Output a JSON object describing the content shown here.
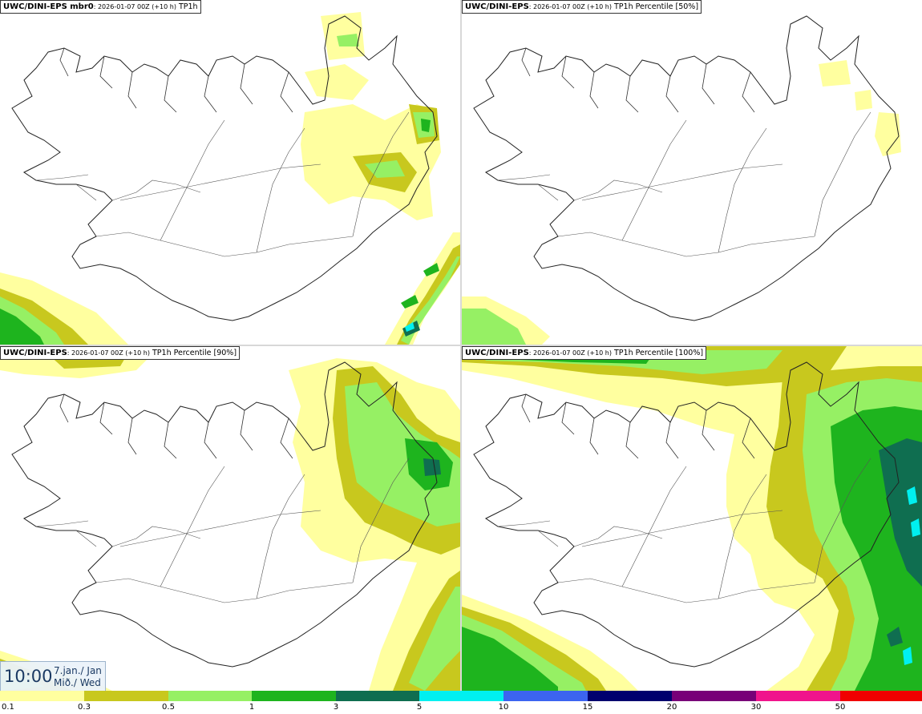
{
  "panels": [
    {
      "model": "UWC/DINI-EPS mbr0",
      "run": ": 2026-01-07 00Z (+10 h)",
      "param": " TP1h"
    },
    {
      "model": "UWC/DINI-EPS",
      "run": ": 2026-01-07 00Z (+10 h)",
      "param": " TP1h Percentile [50%]"
    },
    {
      "model": "UWC/DINI-EPS",
      "run": ": 2026-01-07 00Z (+10 h)",
      "param": " TP1h Percentile [90%]"
    },
    {
      "model": "UWC/DINI-EPS",
      "run": ": 2026-01-07 00Z (+10 h)",
      "param": " TP1h Percentile [100%]"
    }
  ],
  "clock": {
    "time": "10:00",
    "date_line1": "7.jan./ Jan",
    "date_line2": "Mið./ Wed"
  },
  "scale": {
    "ticks": [
      "0.1",
      "0.3",
      "0.5",
      "1",
      "3",
      "5",
      "10",
      "15",
      "20",
      "30",
      "50"
    ],
    "colors": [
      "#ffff9f",
      "#c8c81e",
      "#96f064",
      "#1eb41e",
      "#0f6e50",
      "#00f0f0",
      "#3c64f0",
      "#00006e",
      "#780078",
      "#f0148c",
      "#f00000"
    ]
  },
  "colors": {
    "lvl_0_1": "#ffff9f",
    "lvl_0_3": "#c8c81e",
    "lvl_0_5": "#96f064",
    "lvl_1": "#1eb41e",
    "lvl_3": "#0f6e50",
    "lvl_5": "#00f0f0",
    "coast": "#222222"
  }
}
